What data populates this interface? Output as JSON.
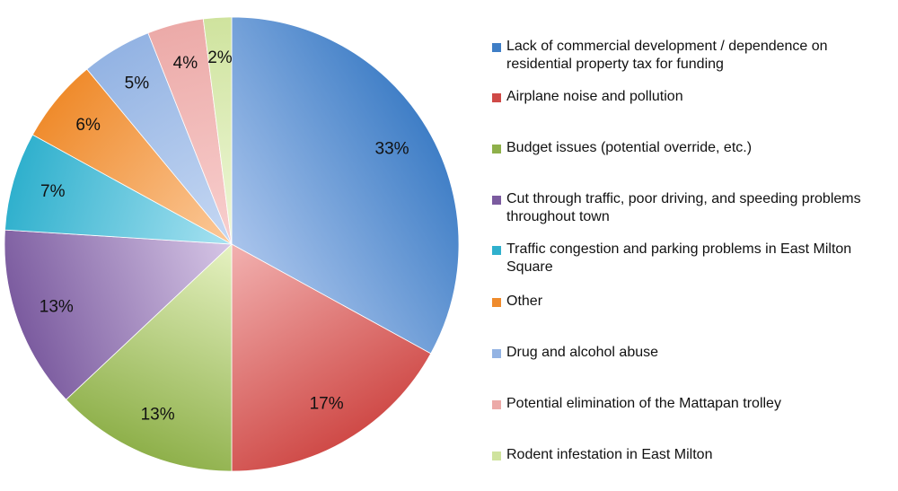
{
  "chart_data": {
    "type": "pie",
    "categories": [
      "Lack of commercial development / dependence on residential property tax for funding",
      "Airplane noise and pollution",
      "Budget issues (potential override, etc.)",
      "Cut through traffic, poor driving, and speeding problems throughout town",
      "Traffic congestion and parking problems in East Milton Square",
      "Other",
      "Drug and alcohol abuse",
      "Potential elimination of the Mattapan trolley",
      "Rodent infestation in East Milton"
    ],
    "values": [
      33,
      17,
      13,
      13,
      7,
      6,
      5,
      4,
      2
    ],
    "labels": [
      "33%",
      "17%",
      "13%",
      "13%",
      "7%",
      "6%",
      "5%",
      "4%",
      "2%"
    ],
    "colors": [
      {
        "light": "#a9c4ec",
        "dark": "#3f7ec6"
      },
      {
        "light": "#f2b1b0",
        "dark": "#cf4a47"
      },
      {
        "light": "#e6f2c2",
        "dark": "#8eb04a"
      },
      {
        "light": "#d6c6e6",
        "dark": "#7b5b9f"
      },
      {
        "light": "#a8e2f1",
        "dark": "#2fb0cd"
      },
      {
        "light": "#fbc99a",
        "dark": "#ef8b2c"
      },
      {
        "light": "#c6d8f3",
        "dark": "#93b3e3"
      },
      {
        "light": "#f8cfce",
        "dark": "#ecaaa8"
      },
      {
        "light": "#eef7d8",
        "dark": "#cfe39e"
      }
    ],
    "legend_position": "right"
  }
}
